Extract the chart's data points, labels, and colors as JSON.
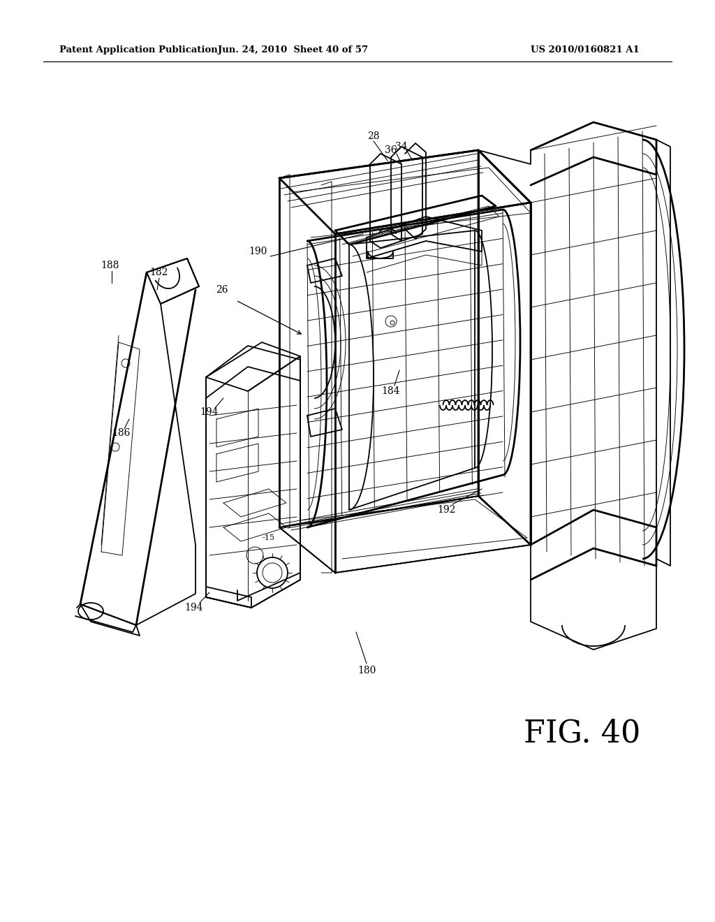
{
  "bg_color": "#ffffff",
  "header_left": "Patent Application Publication",
  "header_center": "Jun. 24, 2010  Sheet 40 of 57",
  "header_right": "US 2010/0160821 A1",
  "fig_label": "FIG. 40",
  "header_fontsize": 9.5,
  "fig_label_fontsize": 32,
  "black": "#000000",
  "lw_main": 1.3,
  "lw_thin": 0.65,
  "lw_thick": 2.0,
  "lw_med": 1.0
}
